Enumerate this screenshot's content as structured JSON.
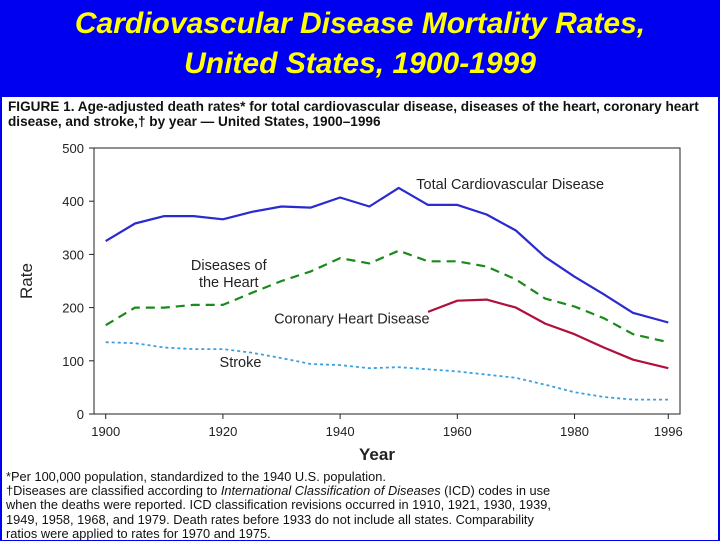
{
  "slide": {
    "title_line1": "Cardiovascular Disease Mortality Rates,",
    "title_line2": "United States, 1900-1999"
  },
  "figure": {
    "caption_label": "FIGURE 1.",
    "caption_text": "Age-adjusted death rates* for total cardiovascular disease, diseases of the heart, coronary heart disease, and stroke,† by year — United States, 1900–1996",
    "footnote1": "*Per 100,000 population, standardized to the 1940 U.S. population.",
    "footnote2_a": "†Diseases are classified according to ",
    "footnote2_b": "International Classification of Diseases",
    "footnote2_c": " (ICD) codes in use",
    "footnote3": "when the deaths were reported. ICD classification revisions occurred in 1910, 1921, 1930, 1939,",
    "footnote4": "1949, 1958, 1968, and 1979. Death rates before 1933 do not include all states. Comparability",
    "footnote5": "ratios were applied to rates for 1970 and 1975."
  },
  "chart_data": {
    "type": "line",
    "title": "",
    "xlabel": "Year",
    "ylabel": "Rate",
    "xlim": [
      1898,
      1998
    ],
    "ylim": [
      0,
      500
    ],
    "x_ticks": [
      1900,
      1920,
      1940,
      1960,
      1980,
      1996
    ],
    "y_ticks": [
      0,
      100,
      200,
      300,
      400,
      500
    ],
    "grid": false,
    "series": [
      {
        "name": "Total Cardiovascular Disease",
        "color": "#2a2ad0",
        "style": "solid",
        "x": [
          1900,
          1905,
          1910,
          1915,
          1920,
          1925,
          1930,
          1935,
          1940,
          1945,
          1950,
          1955,
          1960,
          1965,
          1970,
          1975,
          1980,
          1985,
          1990,
          1996
        ],
        "values": [
          325,
          358,
          372,
          372,
          366,
          380,
          390,
          388,
          407,
          390,
          425,
          393,
          393,
          375,
          345,
          295,
          258,
          225,
          190,
          172
        ]
      },
      {
        "name": "Diseases of the Heart",
        "color": "#1a8a1a",
        "style": "dashed",
        "x": [
          1900,
          1905,
          1910,
          1915,
          1920,
          1925,
          1930,
          1935,
          1940,
          1945,
          1950,
          1955,
          1960,
          1965,
          1970,
          1975,
          1980,
          1985,
          1990,
          1996
        ],
        "values": [
          167,
          200,
          200,
          205,
          205,
          228,
          250,
          268,
          293,
          283,
          307,
          287,
          287,
          277,
          253,
          217,
          202,
          180,
          150,
          135
        ]
      },
      {
        "name": "Coronary Heart Disease",
        "color": "#b0103a",
        "style": "solid",
        "x": [
          1955,
          1960,
          1965,
          1970,
          1975,
          1980,
          1985,
          1990,
          1996
        ],
        "values": [
          192,
          213,
          215,
          200,
          170,
          150,
          125,
          102,
          86
        ]
      },
      {
        "name": "Stroke",
        "color": "#3aa0e0",
        "style": "dotted",
        "x": [
          1900,
          1905,
          1910,
          1915,
          1920,
          1925,
          1930,
          1935,
          1940,
          1945,
          1950,
          1955,
          1960,
          1965,
          1970,
          1975,
          1980,
          1985,
          1990,
          1996
        ],
        "values": [
          135,
          133,
          125,
          122,
          122,
          115,
          105,
          94,
          92,
          86,
          88,
          84,
          80,
          74,
          68,
          55,
          41,
          32,
          27,
          27
        ]
      }
    ]
  }
}
